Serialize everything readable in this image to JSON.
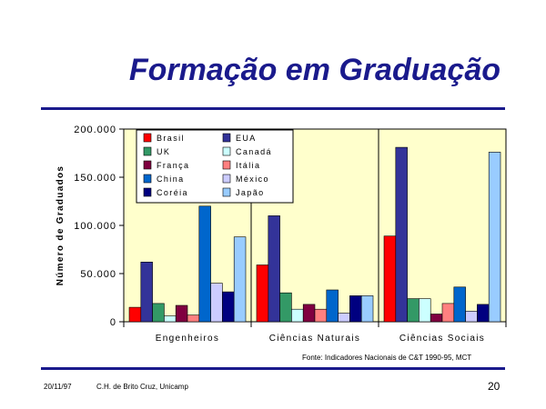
{
  "slide": {
    "title": "Formação em Graduação",
    "source": "Fonte: Indicadores Nacionais de C&T 1990-95, MCT",
    "footer_date": "20/11/97",
    "footer_author": "C.H. de Brito Cruz, Unicamp",
    "page_number": "20"
  },
  "chart_data": {
    "type": "bar",
    "title": "",
    "xlabel": "",
    "ylabel": "Número de Graduados",
    "ylim": [
      0,
      200000
    ],
    "yticks": [
      0,
      50000,
      100000,
      150000,
      200000
    ],
    "ytick_labels": [
      "0",
      "50.000",
      "100.000",
      "150.000",
      "200.000"
    ],
    "categories": [
      "Engenheiros",
      "Ciências Naturais",
      "Ciências Sociais"
    ],
    "legend_position": "top-left",
    "grid": false,
    "background": "#ffffcc",
    "series": [
      {
        "name": "Brasil",
        "color": "#ff0000",
        "values": [
          15000,
          59000,
          89000
        ]
      },
      {
        "name": "EUA",
        "color": "#333399",
        "values": [
          62000,
          110000,
          181000
        ]
      },
      {
        "name": "UK",
        "color": "#339966",
        "values": [
          19000,
          30000,
          24000
        ]
      },
      {
        "name": "Canadá",
        "color": "#ccffff",
        "values": [
          6000,
          13000,
          24000
        ]
      },
      {
        "name": "França",
        "color": "#800040",
        "values": [
          17000,
          18000,
          8000
        ]
      },
      {
        "name": "Itália",
        "color": "#ff8080",
        "values": [
          7000,
          13000,
          19000
        ]
      },
      {
        "name": "China",
        "color": "#0066cc",
        "values": [
          120000,
          33000,
          36000
        ]
      },
      {
        "name": "México",
        "color": "#ccccff",
        "values": [
          40000,
          9000,
          11000
        ]
      },
      {
        "name": "Coréia",
        "color": "#000080",
        "values": [
          31000,
          27000,
          18000
        ]
      },
      {
        "name": "Japão",
        "color": "#99ccff",
        "values": [
          88000,
          27000,
          176000
        ]
      }
    ]
  }
}
